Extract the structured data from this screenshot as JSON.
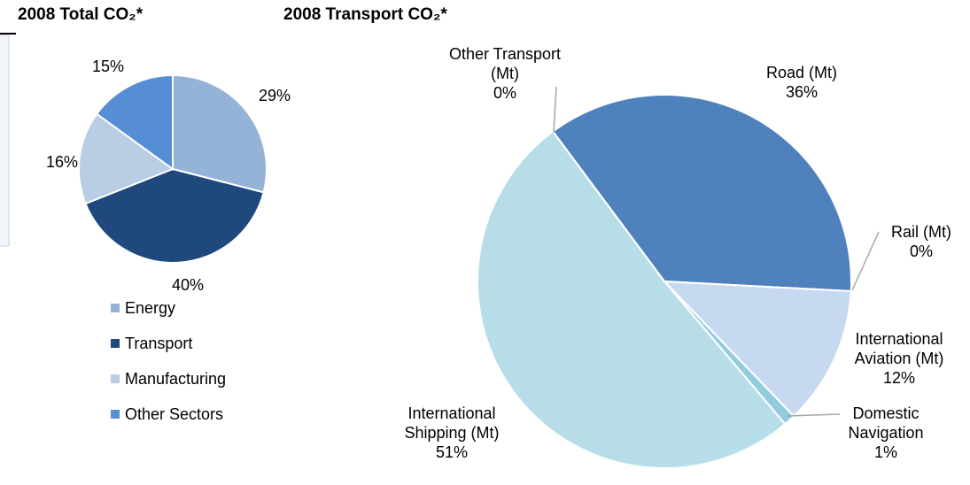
{
  "chart_data": [
    {
      "type": "pie",
      "title": "2008 Total CO₂*",
      "categories": [
        "Energy",
        "Transport",
        "Manufacturing",
        "Other Sectors"
      ],
      "values": [
        29,
        40,
        16,
        15
      ],
      "value_labels": [
        "29%",
        "40%",
        "16%",
        "15%"
      ],
      "colors": [
        "#95b3d7",
        "#1f497d",
        "#b9cde5",
        "#558ed5"
      ],
      "legend": "bottom"
    },
    {
      "type": "pie",
      "title": "2008 Transport CO₂*",
      "categories": [
        "Road (Mt)",
        "Rail (Mt)",
        "International Aviation (Mt)",
        "Domestic Navigation",
        "International Shipping (Mt)",
        "Other Transport (Mt)"
      ],
      "values": [
        36,
        0,
        12,
        1,
        51,
        0
      ],
      "value_labels": [
        "36%",
        "0%",
        "12%",
        "1%",
        "51%",
        "0%"
      ],
      "colors": [
        "#4f81bd",
        "#8eb4e3",
        "#c6d9f1",
        "#93cddd",
        "#b7dde8",
        "#a6a6a6"
      ],
      "legend": "none"
    }
  ]
}
